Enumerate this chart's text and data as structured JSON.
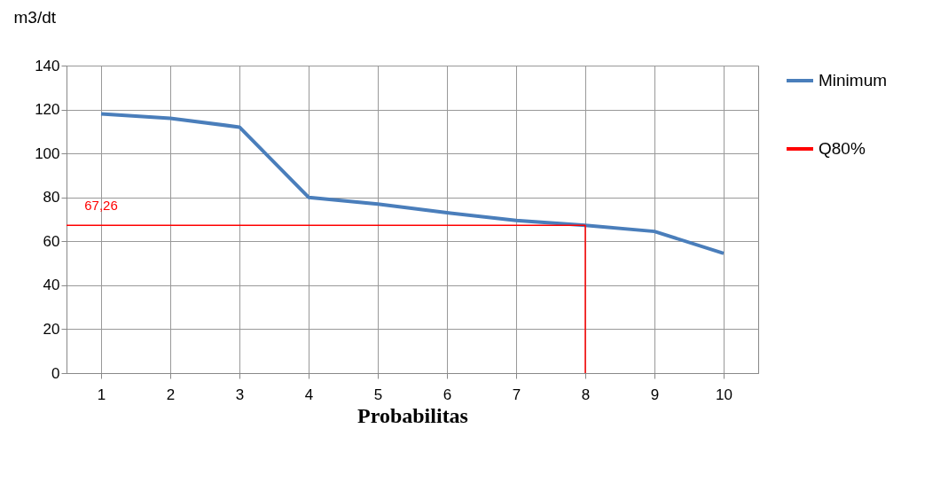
{
  "chart_data": {
    "type": "line",
    "ylabel": "m3/dt",
    "xlabel": "Probabilitas",
    "xlim": [
      0.5,
      10.5
    ],
    "xticks": [
      1,
      2,
      3,
      4,
      5,
      6,
      7,
      8,
      9,
      10
    ],
    "ylim": [
      0,
      140
    ],
    "yticks": [
      0,
      20,
      40,
      60,
      80,
      100,
      120,
      140
    ],
    "series": [
      {
        "name": "Minimum",
        "color": "#4a7ebb",
        "x": [
          1,
          2,
          3,
          4,
          5,
          6,
          7,
          8,
          9,
          10
        ],
        "values": [
          118,
          116,
          112,
          80,
          77,
          73,
          69.5,
          67.26,
          64.5,
          54.5
        ]
      },
      {
        "name": "Q80%",
        "color": "#ff0000",
        "x": [
          0.5,
          8,
          8
        ],
        "values": [
          67.26,
          67.26,
          0
        ]
      }
    ],
    "annotations": [
      {
        "text": "67,26",
        "x": 1,
        "y": 67.26
      }
    ],
    "grid": true,
    "legend": "right"
  }
}
